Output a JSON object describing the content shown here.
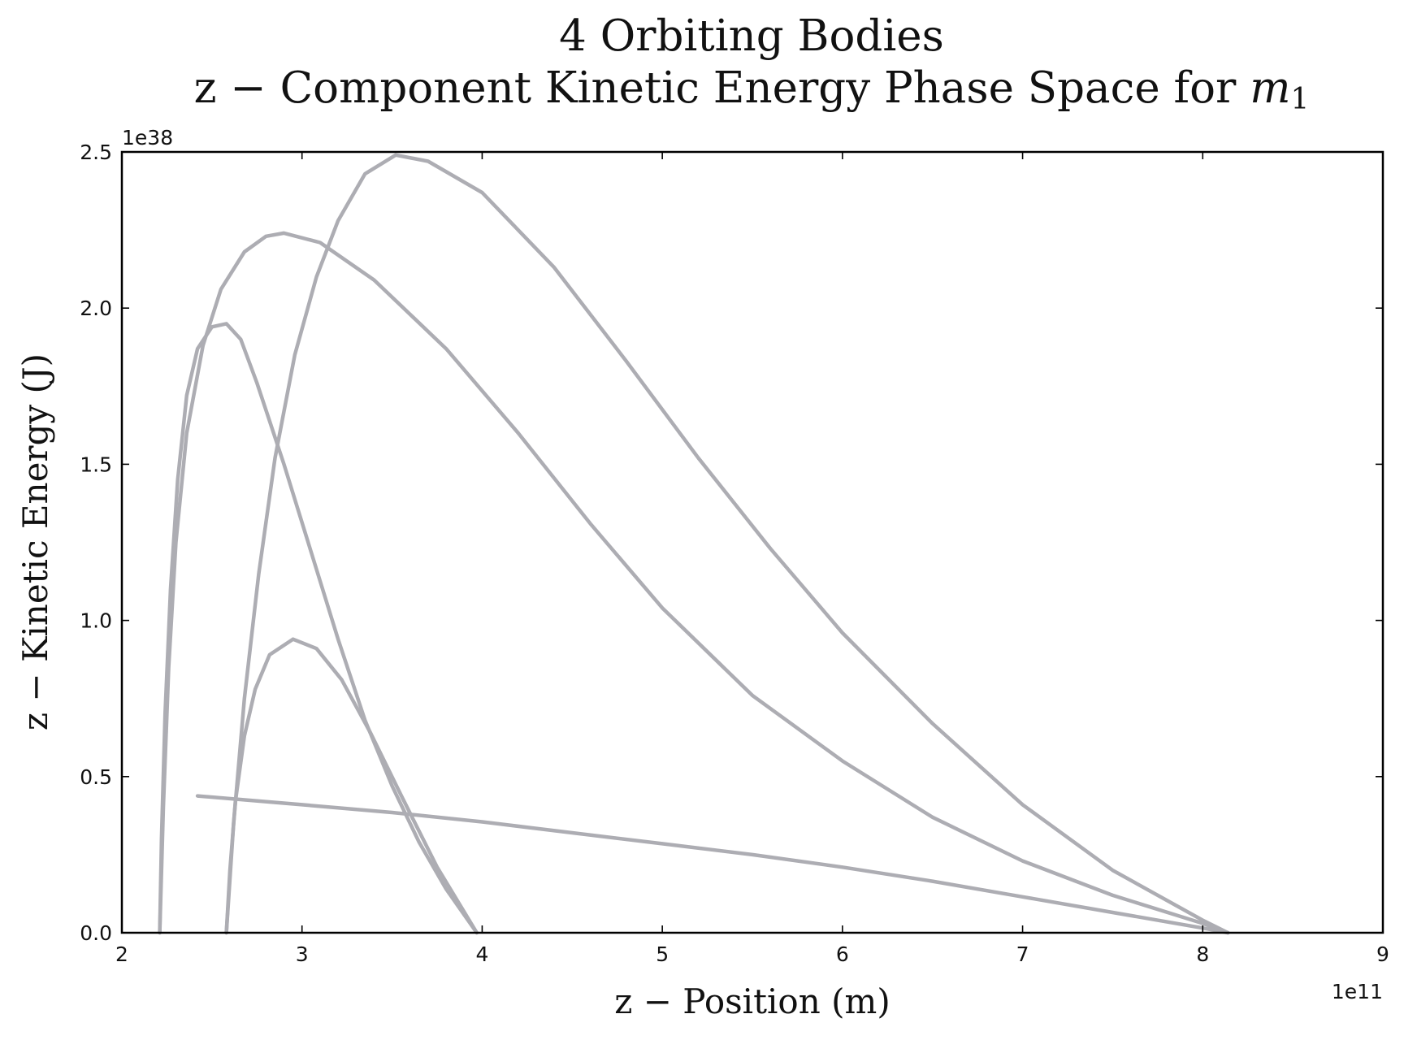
{
  "chart_data": {
    "type": "line",
    "title_line1": "4 Orbiting Bodies",
    "title_line2_main": "z − Component Kinetic Energy Phase Space for ",
    "title_line2_var": "m",
    "title_line2_sub": "1",
    "xlabel": "z − Position (m)",
    "ylabel": "z − Kinetic Energy (J)",
    "x_offset_label": "1e11",
    "y_offset_label": "1e38",
    "xlim": [
      2,
      9
    ],
    "ylim": [
      0,
      2.5
    ],
    "x_ticks": [
      "2",
      "3",
      "4",
      "5",
      "6",
      "7",
      "8",
      "9"
    ],
    "y_ticks": [
      "0.0",
      "0.5",
      "1.0",
      "1.5",
      "2.0",
      "2.5"
    ],
    "grid": false,
    "line_color": "#adadb3",
    "series": [
      {
        "values": [
          [
            2.21,
            0.0
          ],
          [
            2.22,
            0.3
          ],
          [
            2.24,
            0.7
          ],
          [
            2.27,
            1.1
          ],
          [
            2.31,
            1.45
          ],
          [
            2.36,
            1.72
          ],
          [
            2.42,
            1.87
          ],
          [
            2.5,
            1.94
          ],
          [
            2.58,
            1.95
          ],
          [
            2.66,
            1.9
          ],
          [
            2.75,
            1.76
          ],
          [
            2.9,
            1.5
          ],
          [
            3.05,
            1.22
          ],
          [
            3.2,
            0.94
          ],
          [
            3.35,
            0.68
          ],
          [
            3.5,
            0.47
          ],
          [
            3.65,
            0.29
          ],
          [
            3.8,
            0.14
          ],
          [
            3.97,
            0.0
          ]
        ]
      },
      {
        "values": [
          [
            2.58,
            0.0
          ],
          [
            2.6,
            0.2
          ],
          [
            2.63,
            0.42
          ],
          [
            2.68,
            0.63
          ],
          [
            2.74,
            0.78
          ],
          [
            2.82,
            0.89
          ],
          [
            2.95,
            0.94
          ],
          [
            3.08,
            0.91
          ],
          [
            3.22,
            0.81
          ],
          [
            3.38,
            0.64
          ],
          [
            3.55,
            0.44
          ],
          [
            3.75,
            0.21
          ],
          [
            3.97,
            0.0
          ]
        ]
      },
      {
        "values": [
          [
            2.21,
            0.0
          ],
          [
            2.23,
            0.4
          ],
          [
            2.26,
            0.85
          ],
          [
            2.3,
            1.25
          ],
          [
            2.36,
            1.6
          ],
          [
            2.45,
            1.88
          ],
          [
            2.55,
            2.06
          ],
          [
            2.68,
            2.18
          ],
          [
            2.8,
            2.23
          ],
          [
            2.9,
            2.24
          ],
          [
            3.1,
            2.21
          ],
          [
            3.4,
            2.09
          ],
          [
            3.8,
            1.87
          ],
          [
            4.2,
            1.6
          ],
          [
            4.6,
            1.31
          ],
          [
            5.0,
            1.04
          ],
          [
            5.5,
            0.76
          ],
          [
            6.0,
            0.55
          ],
          [
            6.5,
            0.37
          ],
          [
            7.0,
            0.23
          ],
          [
            7.5,
            0.12
          ],
          [
            8.0,
            0.03
          ],
          [
            8.14,
            0.0
          ]
        ]
      },
      {
        "values": [
          [
            2.58,
            0.0
          ],
          [
            2.62,
            0.35
          ],
          [
            2.68,
            0.75
          ],
          [
            2.76,
            1.15
          ],
          [
            2.85,
            1.52
          ],
          [
            2.96,
            1.85
          ],
          [
            3.08,
            2.1
          ],
          [
            3.2,
            2.28
          ],
          [
            3.35,
            2.43
          ],
          [
            3.52,
            2.49
          ],
          [
            3.7,
            2.47
          ],
          [
            4.0,
            2.37
          ],
          [
            4.4,
            2.13
          ],
          [
            4.8,
            1.83
          ],
          [
            5.2,
            1.52
          ],
          [
            5.6,
            1.23
          ],
          [
            6.0,
            0.96
          ],
          [
            6.5,
            0.67
          ],
          [
            7.0,
            0.41
          ],
          [
            7.5,
            0.2
          ],
          [
            8.0,
            0.04
          ],
          [
            8.14,
            0.0
          ]
        ]
      },
      {
        "values": [
          [
            2.42,
            0.438
          ],
          [
            3.0,
            0.41
          ],
          [
            3.5,
            0.385
          ],
          [
            4.0,
            0.355
          ],
          [
            4.5,
            0.32
          ],
          [
            5.0,
            0.285
          ],
          [
            5.5,
            0.25
          ],
          [
            6.0,
            0.21
          ],
          [
            6.5,
            0.165
          ],
          [
            7.0,
            0.115
          ],
          [
            7.5,
            0.065
          ],
          [
            8.0,
            0.015
          ],
          [
            8.14,
            0.0
          ]
        ]
      }
    ]
  }
}
